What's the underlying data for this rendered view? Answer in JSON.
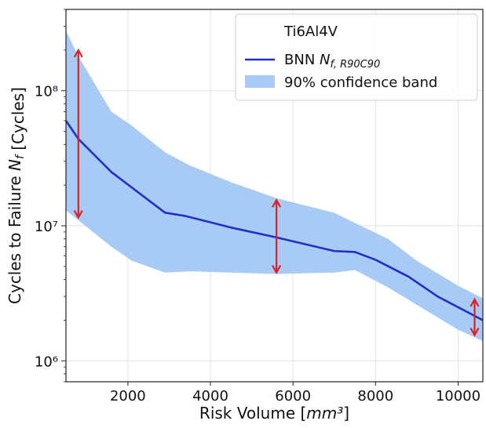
{
  "chart_data": {
    "type": "line",
    "xlabel": "Risk Volume [mm³]",
    "ylabel": "Cycles to Failure N_f [Cycles]",
    "xlim": [
      500,
      10600
    ],
    "ylim": [
      700000,
      400000000
    ],
    "yscale": "log",
    "grid": true,
    "legend": {
      "placement": "top-right",
      "title": "Ti6Al4V"
    },
    "x_ticks": [
      2000,
      4000,
      6000,
      8000,
      10000
    ],
    "x_tick_labels": [
      "2000",
      "4000",
      "6000",
      "8000",
      "10000"
    ],
    "y_ticks": [
      1000000,
      10000000,
      100000000
    ],
    "y_tick_labels": [
      "10⁶",
      "10⁷",
      "10⁸"
    ],
    "series": [
      {
        "name": "BNN N_f,R90C90",
        "color": "#1f2fc8",
        "x": [
          500,
          800,
          1600,
          2900,
          3400,
          4500,
          5600,
          7000,
          7500,
          8000,
          8800,
          9500,
          10600
        ],
        "values": [
          60000000,
          44000000,
          25000000,
          12500000,
          11800000,
          9700000,
          8200000,
          6500000,
          6400000,
          5600000,
          4200000,
          3000000,
          2000000
        ]
      }
    ],
    "band": {
      "name": "90% confidence band",
      "color": "#a8cbf5",
      "x": [
        500,
        800,
        1600,
        2100,
        2900,
        3500,
        4500,
        5600,
        7000,
        7500,
        8300,
        9000,
        10000,
        10600
      ],
      "lower": [
        13000000,
        11000000,
        7000000,
        5500000,
        4500000,
        4600000,
        4500000,
        4400000,
        4500000,
        4700000,
        3500000,
        2600000,
        1700000,
        1400000
      ],
      "upper": [
        280000000,
        180000000,
        70000000,
        55000000,
        35000000,
        28000000,
        21000000,
        16000000,
        12500000,
        10500000,
        8000000,
        5500000,
        3600000,
        2900000
      ]
    },
    "error_bars": {
      "color": "#e02020",
      "items": [
        {
          "x": 800,
          "low": 11500000,
          "high": 200000000
        },
        {
          "x": 5600,
          "low": 4500000,
          "high": 15500000
        },
        {
          "x": 10400,
          "low": 1550000,
          "high": 2850000
        }
      ]
    }
  }
}
